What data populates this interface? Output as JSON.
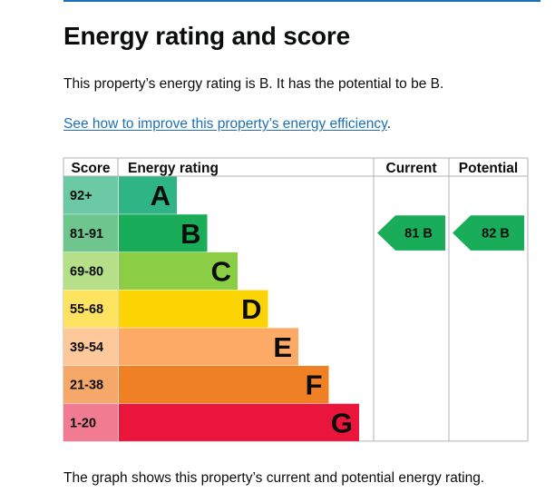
{
  "page": {
    "title": "Energy rating and score",
    "summary": "This property’s energy rating is B. It has the potential to be B.",
    "improve_link": "See how to improve this property’s energy efficiency",
    "improve_link_suffix": ".",
    "caption": "The graph shows this property’s current and potential energy rating."
  },
  "chart_data": {
    "type": "bar",
    "headers": {
      "score": "Score",
      "rating": "Energy rating",
      "current": "Current",
      "potential": "Potential"
    },
    "bands": [
      {
        "score": "92+",
        "letter": "A",
        "color": "#2fb485",
        "score_bg": "#6cc9a5"
      },
      {
        "score": "81-91",
        "letter": "B",
        "color": "#1aad59",
        "score_bg": "#6ec58e"
      },
      {
        "score": "69-80",
        "letter": "C",
        "color": "#8ccd46",
        "score_bg": "#b6df8a"
      },
      {
        "score": "55-68",
        "letter": "D",
        "color": "#fdd403",
        "score_bg": "#fde35f"
      },
      {
        "score": "39-54",
        "letter": "E",
        "color": "#fcaa65",
        "score_bg": "#fdc89a"
      },
      {
        "score": "21-38",
        "letter": "F",
        "color": "#ef8023",
        "score_bg": "#f5a86a"
      },
      {
        "score": "1-20",
        "letter": "G",
        "color": "#e9153b",
        "score_bg": "#f17b90"
      }
    ],
    "current": {
      "score": 81,
      "letter": "B",
      "label": "81 B",
      "color": "#1aad59"
    },
    "potential": {
      "score": 82,
      "letter": "B",
      "label": "82 B",
      "color": "#1aad59"
    }
  }
}
